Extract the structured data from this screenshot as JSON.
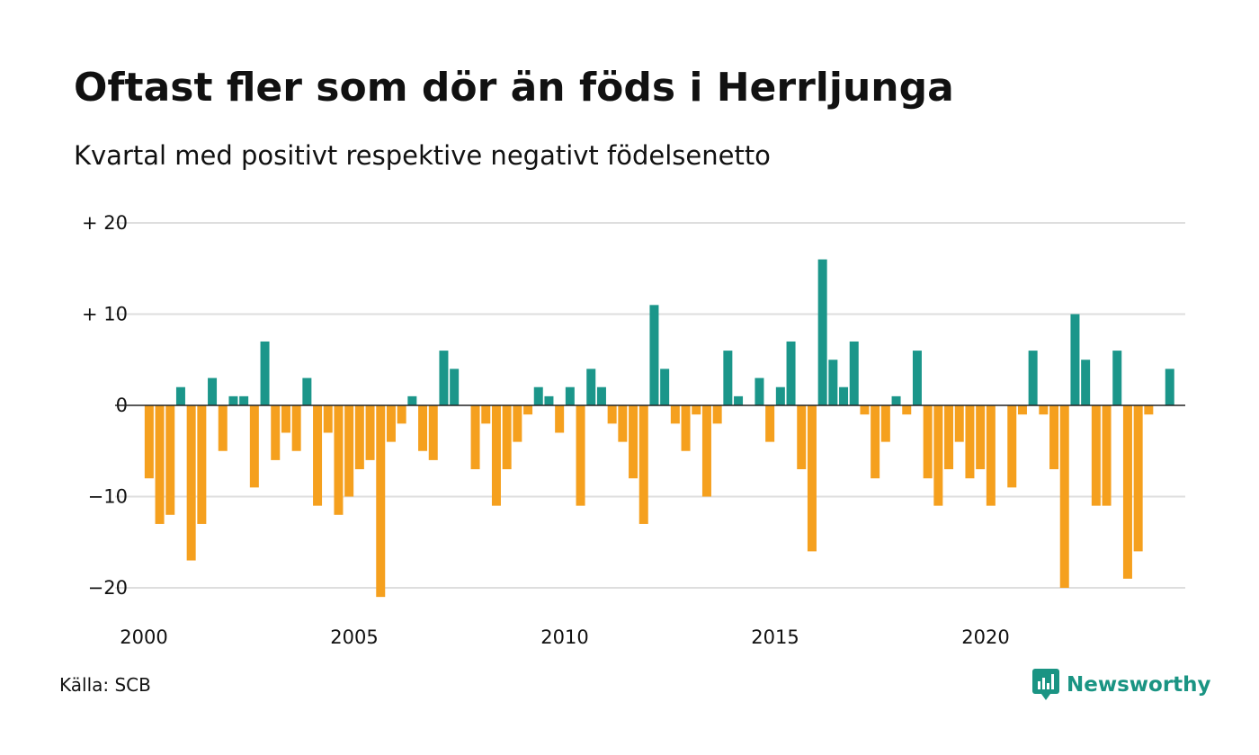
{
  "chart_data": {
    "type": "bar",
    "title": "Oftast fler som dör än föds i Herrljunga",
    "subtitle": "Kvartal med positivt respektive negativt födelsenetto",
    "xlabel": "",
    "ylabel": "",
    "ylim": [
      -23,
      22
    ],
    "grid": true,
    "legend": "none",
    "y_ticks": [
      {
        "value": 20,
        "label": "+ 20"
      },
      {
        "value": 10,
        "label": "+ 10"
      },
      {
        "value": 0,
        "label": "0"
      },
      {
        "value": -10,
        "label": "−10"
      },
      {
        "value": -20,
        "label": "−20"
      }
    ],
    "x_ticks": [
      {
        "value": 2000,
        "label": "2000"
      },
      {
        "value": 2005,
        "label": "2005"
      },
      {
        "value": 2010,
        "label": "2010"
      },
      {
        "value": 2015,
        "label": "2015"
      },
      {
        "value": 2020,
        "label": "2020"
      }
    ],
    "start_year": 2000,
    "quarters_per_year": 4,
    "values": [
      -8,
      -13,
      -12,
      2,
      -17,
      -13,
      3,
      -5,
      1,
      1,
      -9,
      7,
      -6,
      -3,
      -5,
      3,
      -11,
      -3,
      -12,
      -10,
      -7,
      -6,
      -21,
      -4,
      -2,
      1,
      -5,
      -6,
      6,
      4,
      0,
      -7,
      -2,
      -11,
      -7,
      -4,
      -1,
      2,
      1,
      -3,
      2,
      -11,
      4,
      2,
      -2,
      -4,
      -8,
      -13,
      11,
      4,
      -2,
      -5,
      -1,
      -10,
      -2,
      6,
      1,
      0,
      3,
      -4,
      2,
      7,
      -7,
      -16,
      16,
      5,
      2,
      7,
      -1,
      -8,
      -4,
      1,
      -1,
      6,
      -8,
      -11,
      -7,
      -4,
      -8,
      -7,
      -11,
      0,
      -9,
      -1,
      6,
      -1,
      -7,
      -20,
      10,
      5,
      -11,
      -11,
      6,
      -19,
      -16,
      -1,
      0,
      4
    ],
    "colors": {
      "positive": "#1b968a",
      "negative": "#f5a01e"
    }
  },
  "footer": {
    "source": "Källa: SCB",
    "brand": "Newsworthy",
    "brand_icon": "newsworthy-logo-icon"
  }
}
